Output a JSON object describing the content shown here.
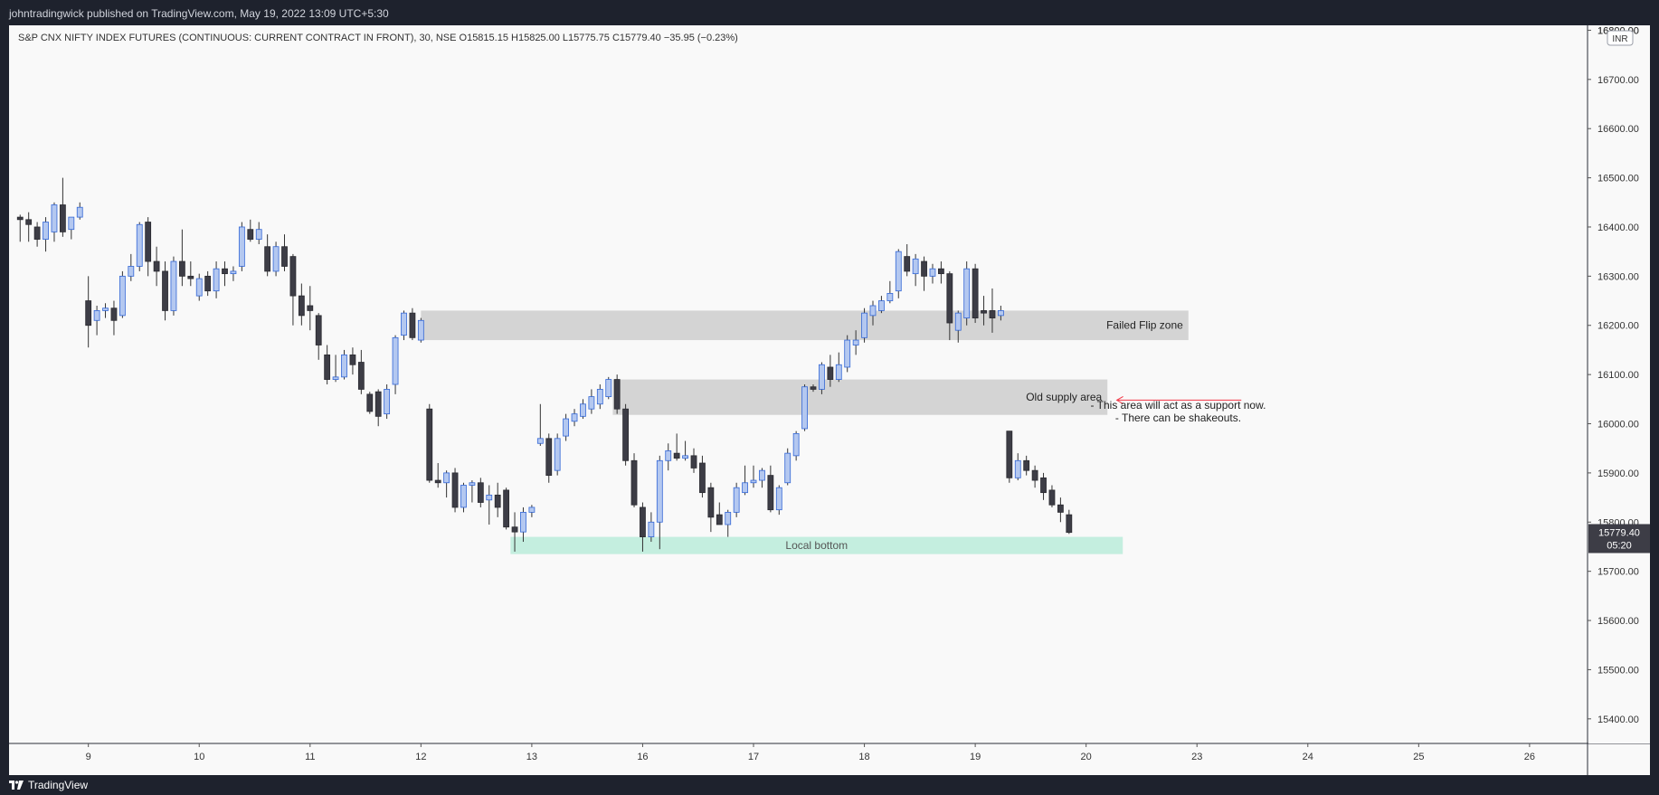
{
  "header": {
    "published_text": "johntradingwick published on TradingView.com, May 19, 2022 13:09 UTC+5:30"
  },
  "footer": {
    "brand": "TradingView"
  },
  "chart_data": {
    "type": "candlestick",
    "title": "S&P CNX NIFTY INDEX FUTURES (CONTINUOUS: CURRENT CONTRACT IN FRONT), 30, NSE",
    "ohlc_header": {
      "open": "O15815.15",
      "high": "H15825.00",
      "low": "L15775.75",
      "close": "C15779.40",
      "change": "−35.95 (−0.23%)"
    },
    "currency": "INR",
    "ylim": [
      15350,
      16810
    ],
    "y_ticks": [
      16800,
      16700,
      16600,
      16500,
      16400,
      16300,
      16200,
      16100,
      16000,
      15900,
      15800,
      15700,
      15600,
      15500,
      15400
    ],
    "y_tick_labels": [
      "16800.00",
      "16700.00",
      "16600.00",
      "16500.00",
      "16400.00",
      "16300.00",
      "16200.00",
      "16100.00",
      "16000.00",
      "15900.00",
      "15800.00",
      "15700.00",
      "15600.00",
      "15500.00",
      "15400.00"
    ],
    "x_ticks": [
      {
        "label": "9",
        "bar": 8
      },
      {
        "label": "10",
        "bar": 21
      },
      {
        "label": "11",
        "bar": 34
      },
      {
        "label": "12",
        "bar": 47
      },
      {
        "label": "13",
        "bar": 60
      },
      {
        "label": "16",
        "bar": 73
      },
      {
        "label": "17",
        "bar": 86
      },
      {
        "label": "18",
        "bar": 99
      },
      {
        "label": "19",
        "bar": 112
      },
      {
        "label": "20",
        "bar": 125
      },
      {
        "label": "23",
        "bar": 138
      },
      {
        "label": "24",
        "bar": 151
      },
      {
        "label": "25",
        "bar": 164
      },
      {
        "label": "26",
        "bar": 177
      }
    ],
    "bar_range": [
      -1.3,
      183.8
    ],
    "last_price": {
      "value": 15779.4,
      "label": "15779.40",
      "countdown": "05:20"
    },
    "candles": [
      {
        "o": 16420,
        "h": 16425,
        "l": 16370,
        "c": 16415
      },
      {
        "o": 16415,
        "h": 16430,
        "l": 16370,
        "c": 16405
      },
      {
        "o": 16400,
        "h": 16410,
        "l": 16360,
        "c": 16375
      },
      {
        "o": 16375,
        "h": 16420,
        "l": 16350,
        "c": 16410
      },
      {
        "o": 16390,
        "h": 16450,
        "l": 16370,
        "c": 16445
      },
      {
        "o": 16445,
        "h": 16500,
        "l": 16380,
        "c": 16390
      },
      {
        "o": 16395,
        "h": 16420,
        "l": 16375,
        "c": 16420
      },
      {
        "o": 16420,
        "h": 16450,
        "l": 16415,
        "c": 16440
      },
      {
        "o": 16250,
        "h": 16300,
        "l": 16155,
        "c": 16200
      },
      {
        "o": 16210,
        "h": 16240,
        "l": 16180,
        "c": 16230
      },
      {
        "o": 16230,
        "h": 16245,
        "l": 16215,
        "c": 16235
      },
      {
        "o": 16235,
        "h": 16250,
        "l": 16180,
        "c": 16210
      },
      {
        "o": 16220,
        "h": 16310,
        "l": 16215,
        "c": 16300
      },
      {
        "o": 16300,
        "h": 16345,
        "l": 16290,
        "c": 16320
      },
      {
        "o": 16320,
        "h": 16410,
        "l": 16310,
        "c": 16405
      },
      {
        "o": 16410,
        "h": 16420,
        "l": 16300,
        "c": 16330
      },
      {
        "o": 16330,
        "h": 16360,
        "l": 16280,
        "c": 16310
      },
      {
        "o": 16310,
        "h": 16330,
        "l": 16210,
        "c": 16230
      },
      {
        "o": 16230,
        "h": 16340,
        "l": 16220,
        "c": 16330
      },
      {
        "o": 16330,
        "h": 16395,
        "l": 16280,
        "c": 16300
      },
      {
        "o": 16300,
        "h": 16330,
        "l": 16280,
        "c": 16295
      },
      {
        "o": 16260,
        "h": 16305,
        "l": 16250,
        "c": 16295
      },
      {
        "o": 16300,
        "h": 16310,
        "l": 16260,
        "c": 16270
      },
      {
        "o": 16270,
        "h": 16330,
        "l": 16255,
        "c": 16315
      },
      {
        "o": 16315,
        "h": 16330,
        "l": 16280,
        "c": 16305
      },
      {
        "o": 16305,
        "h": 16320,
        "l": 16290,
        "c": 16310
      },
      {
        "o": 16320,
        "h": 16410,
        "l": 16310,
        "c": 16400
      },
      {
        "o": 16395,
        "h": 16415,
        "l": 16370,
        "c": 16375
      },
      {
        "o": 16375,
        "h": 16410,
        "l": 16365,
        "c": 16395
      },
      {
        "o": 16360,
        "h": 16385,
        "l": 16300,
        "c": 16310
      },
      {
        "o": 16310,
        "h": 16370,
        "l": 16300,
        "c": 16360
      },
      {
        "o": 16360,
        "h": 16385,
        "l": 16310,
        "c": 16320
      },
      {
        "o": 16340,
        "h": 16345,
        "l": 16200,
        "c": 16260
      },
      {
        "o": 16260,
        "h": 16285,
        "l": 16200,
        "c": 16220
      },
      {
        "o": 16240,
        "h": 16280,
        "l": 16190,
        "c": 16230
      },
      {
        "o": 16220,
        "h": 16225,
        "l": 16130,
        "c": 16160
      },
      {
        "o": 16140,
        "h": 16160,
        "l": 16080,
        "c": 16090
      },
      {
        "o": 16090,
        "h": 16140,
        "l": 16085,
        "c": 16095
      },
      {
        "o": 16095,
        "h": 16150,
        "l": 16090,
        "c": 16140
      },
      {
        "o": 16140,
        "h": 16155,
        "l": 16100,
        "c": 16120
      },
      {
        "o": 16125,
        "h": 16150,
        "l": 16060,
        "c": 16070
      },
      {
        "o": 16060,
        "h": 16065,
        "l": 16020,
        "c": 16025
      },
      {
        "o": 16065,
        "h": 16070,
        "l": 15995,
        "c": 16015
      },
      {
        "o": 16020,
        "h": 16080,
        "l": 16010,
        "c": 16070
      },
      {
        "o": 16080,
        "h": 16180,
        "l": 16060,
        "c": 16175
      },
      {
        "o": 16180,
        "h": 16230,
        "l": 16170,
        "c": 16225
      },
      {
        "o": 16225,
        "h": 16235,
        "l": 16170,
        "c": 16175
      },
      {
        "o": 16170,
        "h": 16215,
        "l": 16165,
        "c": 16210
      },
      {
        "o": 16030,
        "h": 16040,
        "l": 15880,
        "c": 15885
      },
      {
        "o": 15885,
        "h": 15920,
        "l": 15870,
        "c": 15880
      },
      {
        "o": 15880,
        "h": 15905,
        "l": 15850,
        "c": 15900
      },
      {
        "o": 15900,
        "h": 15910,
        "l": 15820,
        "c": 15830
      },
      {
        "o": 15830,
        "h": 15880,
        "l": 15820,
        "c": 15875
      },
      {
        "o": 15875,
        "h": 15885,
        "l": 15840,
        "c": 15880
      },
      {
        "o": 15880,
        "h": 15890,
        "l": 15830,
        "c": 15840
      },
      {
        "o": 15845,
        "h": 15875,
        "l": 15795,
        "c": 15855
      },
      {
        "o": 15855,
        "h": 15880,
        "l": 15810,
        "c": 15830
      },
      {
        "o": 15865,
        "h": 15870,
        "l": 15785,
        "c": 15790
      },
      {
        "o": 15790,
        "h": 15820,
        "l": 15740,
        "c": 15780
      },
      {
        "o": 15780,
        "h": 15830,
        "l": 15760,
        "c": 15820
      },
      {
        "o": 15820,
        "h": 15835,
        "l": 15810,
        "c": 15830
      },
      {
        "o": 15960,
        "h": 16040,
        "l": 15955,
        "c": 15970
      },
      {
        "o": 15970,
        "h": 15980,
        "l": 15880,
        "c": 15895
      },
      {
        "o": 15905,
        "h": 15980,
        "l": 15895,
        "c": 15970
      },
      {
        "o": 15975,
        "h": 16020,
        "l": 15965,
        "c": 16010
      },
      {
        "o": 16005,
        "h": 16030,
        "l": 15995,
        "c": 16020
      },
      {
        "o": 16015,
        "h": 16050,
        "l": 16010,
        "c": 16040
      },
      {
        "o": 16030,
        "h": 16070,
        "l": 16020,
        "c": 16055
      },
      {
        "o": 16040,
        "h": 16080,
        "l": 16030,
        "c": 16070
      },
      {
        "o": 16055,
        "h": 16095,
        "l": 16050,
        "c": 16090
      },
      {
        "o": 16090,
        "h": 16100,
        "l": 16020,
        "c": 16030
      },
      {
        "o": 16030,
        "h": 16040,
        "l": 15915,
        "c": 15925
      },
      {
        "o": 15925,
        "h": 15940,
        "l": 15830,
        "c": 15835
      },
      {
        "o": 15830,
        "h": 15840,
        "l": 15740,
        "c": 15770
      },
      {
        "o": 15770,
        "h": 15820,
        "l": 15760,
        "c": 15800
      },
      {
        "o": 15800,
        "h": 15935,
        "l": 15745,
        "c": 15925
      },
      {
        "o": 15925,
        "h": 15960,
        "l": 15905,
        "c": 15945
      },
      {
        "o": 15940,
        "h": 15980,
        "l": 15925,
        "c": 15930
      },
      {
        "o": 15930,
        "h": 15965,
        "l": 15925,
        "c": 15935
      },
      {
        "o": 15935,
        "h": 15950,
        "l": 15900,
        "c": 15910
      },
      {
        "o": 15920,
        "h": 15935,
        "l": 15850,
        "c": 15860
      },
      {
        "o": 15870,
        "h": 15880,
        "l": 15780,
        "c": 15810
      },
      {
        "o": 15815,
        "h": 15840,
        "l": 15795,
        "c": 15795
      },
      {
        "o": 15795,
        "h": 15825,
        "l": 15770,
        "c": 15820
      },
      {
        "o": 15820,
        "h": 15880,
        "l": 15810,
        "c": 15870
      },
      {
        "o": 15860,
        "h": 15915,
        "l": 15855,
        "c": 15880
      },
      {
        "o": 15880,
        "h": 15915,
        "l": 15870,
        "c": 15885
      },
      {
        "o": 15885,
        "h": 15910,
        "l": 15870,
        "c": 15905
      },
      {
        "o": 15895,
        "h": 15915,
        "l": 15820,
        "c": 15825
      },
      {
        "o": 15825,
        "h": 15875,
        "l": 15815,
        "c": 15870
      },
      {
        "o": 15880,
        "h": 15950,
        "l": 15875,
        "c": 15940
      },
      {
        "o": 15935,
        "h": 15985,
        "l": 15925,
        "c": 15980
      },
      {
        "o": 15990,
        "h": 16080,
        "l": 15985,
        "c": 16075
      },
      {
        "o": 16075,
        "h": 16080,
        "l": 16065,
        "c": 16070
      },
      {
        "o": 16070,
        "h": 16125,
        "l": 16060,
        "c": 16120
      },
      {
        "o": 16115,
        "h": 16140,
        "l": 16075,
        "c": 16090
      },
      {
        "o": 16090,
        "h": 16145,
        "l": 16085,
        "c": 16120
      },
      {
        "o": 16115,
        "h": 16180,
        "l": 16105,
        "c": 16170
      },
      {
        "o": 16160,
        "h": 16190,
        "l": 16140,
        "c": 16170
      },
      {
        "o": 16175,
        "h": 16235,
        "l": 16165,
        "c": 16225
      },
      {
        "o": 16220,
        "h": 16250,
        "l": 16200,
        "c": 16240
      },
      {
        "o": 16230,
        "h": 16260,
        "l": 16225,
        "c": 16250
      },
      {
        "o": 16250,
        "h": 16290,
        "l": 16245,
        "c": 16265
      },
      {
        "o": 16270,
        "h": 16355,
        "l": 16255,
        "c": 16350
      },
      {
        "o": 16340,
        "h": 16365,
        "l": 16300,
        "c": 16310
      },
      {
        "o": 16305,
        "h": 16345,
        "l": 16280,
        "c": 16335
      },
      {
        "o": 16330,
        "h": 16340,
        "l": 16270,
        "c": 16300
      },
      {
        "o": 16300,
        "h": 16325,
        "l": 16285,
        "c": 16315
      },
      {
        "o": 16315,
        "h": 16330,
        "l": 16285,
        "c": 16305
      },
      {
        "o": 16305,
        "h": 16310,
        "l": 16170,
        "c": 16205
      },
      {
        "o": 16190,
        "h": 16230,
        "l": 16165,
        "c": 16225
      },
      {
        "o": 16215,
        "h": 16330,
        "l": 16200,
        "c": 16315
      },
      {
        "o": 16315,
        "h": 16325,
        "l": 16205,
        "c": 16215
      },
      {
        "o": 16230,
        "h": 16260,
        "l": 16200,
        "c": 16225
      },
      {
        "o": 16230,
        "h": 16275,
        "l": 16185,
        "c": 16215
      },
      {
        "o": 16220,
        "h": 16240,
        "l": 16210,
        "c": 16230
      },
      {
        "o": 15985,
        "h": 15985,
        "l": 15880,
        "c": 15890
      },
      {
        "o": 15890,
        "h": 15940,
        "l": 15885,
        "c": 15925
      },
      {
        "o": 15925,
        "h": 15935,
        "l": 15895,
        "c": 15905
      },
      {
        "o": 15905,
        "h": 15915,
        "l": 15870,
        "c": 15885
      },
      {
        "o": 15890,
        "h": 15900,
        "l": 15845,
        "c": 15860
      },
      {
        "o": 15865,
        "h": 15875,
        "l": 15830,
        "c": 15835
      },
      {
        "o": 15835,
        "h": 15850,
        "l": 15800,
        "c": 15820
      },
      {
        "o": 15815,
        "h": 15825,
        "l": 15776,
        "c": 15779
      }
    ],
    "zones": [
      {
        "label": "Failed Flip zone",
        "top": 16230,
        "bottom": 16170,
        "bar_start": 47,
        "bar_end": 137,
        "color": "#d4d4d4"
      },
      {
        "label": "Old supply area",
        "top": 16090,
        "bottom": 16018,
        "bar_start": 69.5,
        "bar_end": 127.5,
        "color": "#d4d4d4"
      },
      {
        "label": "Local bottom",
        "top": 15770,
        "bottom": 15735,
        "bar_start": 57.5,
        "bar_end": 129.3,
        "color": "#c4eedf"
      }
    ],
    "annotation": {
      "lines": [
        "- This area will act as a support now.",
        "- There can be shakeouts."
      ],
      "arrow_color": "#f23645"
    },
    "colors": {
      "up_body": "#b4c8f0",
      "up_border": "#3367d6",
      "down_body": "#3d3d46",
      "down_border": "#2a2a30",
      "wick": "#333333",
      "background": "#f9f9f9",
      "axis_text": "#333333"
    }
  }
}
